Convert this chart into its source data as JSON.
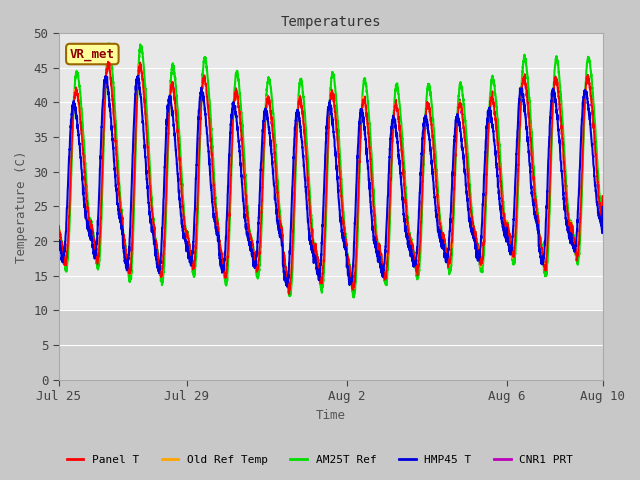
{
  "title": "Temperatures",
  "xlabel": "Time",
  "ylabel": "Temperature (C)",
  "ylim": [
    0,
    50
  ],
  "x_ticks_labels": [
    "Jul 25",
    "Jul 29",
    "Aug 2",
    "Aug 6",
    "Aug 10"
  ],
  "x_ticks_positions": [
    0,
    4,
    9,
    14,
    17
  ],
  "annotation_text": "VR_met",
  "fig_bg_color": "#c8c8c8",
  "axes_bg_color": "#e8e8e8",
  "lower_band_color": "#d0d0d0",
  "grid_color": "#ffffff",
  "series": [
    {
      "label": "Panel T",
      "color": "#ff0000",
      "lw": 1.2,
      "zorder": 5
    },
    {
      "label": "Old Ref Temp",
      "color": "#ffa500",
      "lw": 1.2,
      "zorder": 4
    },
    {
      "label": "AM25T Ref",
      "color": "#00dd00",
      "lw": 1.5,
      "zorder": 3
    },
    {
      "label": "HMP45 T",
      "color": "#0000dd",
      "lw": 1.5,
      "zorder": 6
    },
    {
      "label": "CNR1 PRT",
      "color": "#bb00bb",
      "lw": 1.2,
      "zorder": 2
    }
  ],
  "num_days": 17,
  "points_per_day": 200,
  "yticks": [
    0,
    5,
    10,
    15,
    20,
    25,
    30,
    35,
    40,
    45,
    50
  ]
}
